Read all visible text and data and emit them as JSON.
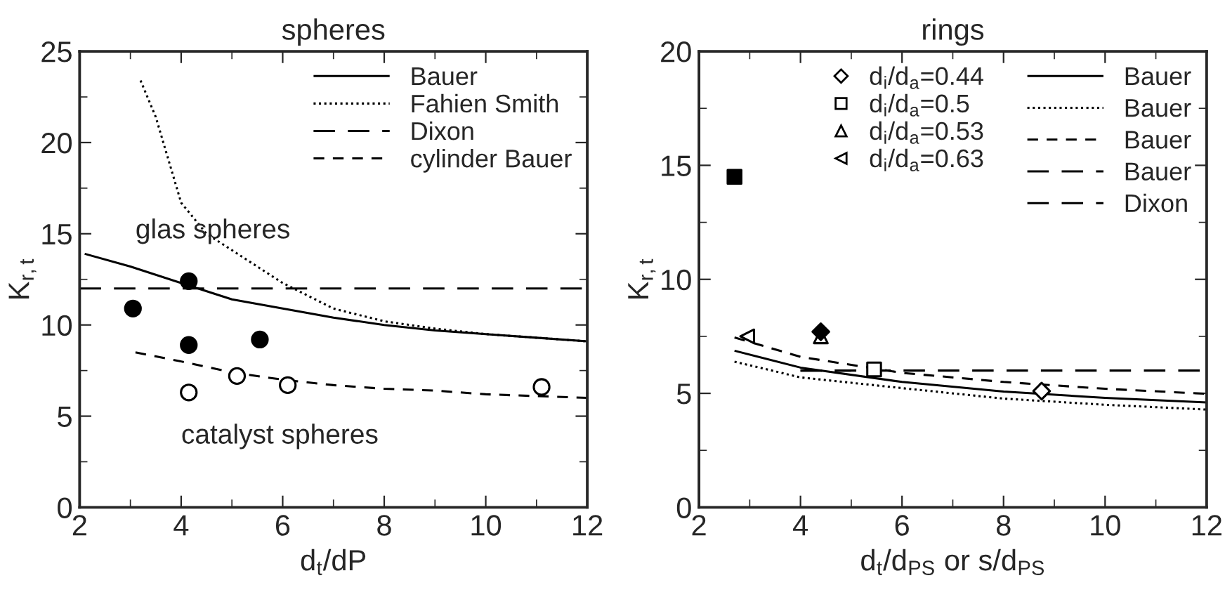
{
  "chart_data": [
    {
      "type": "line",
      "title": "spheres",
      "xlabel": "d$_{t}$/dP",
      "ylabel": "K$_{r,t}$",
      "xlim": [
        2,
        12
      ],
      "ylim": [
        0,
        25
      ],
      "xticks": [
        2,
        {
          "value": 3,
          "label": null
        },
        4,
        {
          "value": 5,
          "label": null
        },
        6,
        {
          "value": 7,
          "label": null
        },
        8,
        {
          "value": 9,
          "label": null
        },
        10,
        {
          "value": 11,
          "label": null
        },
        12
      ],
      "yticks": [
        0,
        {
          "value": 2.5,
          "label": null
        },
        5,
        {
          "value": 7.5,
          "label": null
        },
        10,
        {
          "value": 12.5,
          "label": null
        },
        15,
        {
          "value": 17.5,
          "label": null
        },
        20,
        {
          "value": 22.5,
          "label": null
        },
        25
      ],
      "legend": "top right",
      "series": [
        {
          "type": "line",
          "name": "Bauer",
          "color": "#000000",
          "line_style": "solid",
          "x": [
            2.1,
            3,
            4,
            5,
            6,
            7,
            8,
            9,
            10,
            11,
            12
          ],
          "values": [
            13.9,
            13.2,
            12.3,
            11.4,
            10.9,
            10.4,
            10.0,
            9.7,
            9.5,
            9.3,
            9.1
          ]
        },
        {
          "type": "line",
          "name": "Fahien Smith",
          "color": "#000000",
          "line_style": "dotted",
          "x": [
            3.2,
            3.5,
            4,
            4.5,
            5,
            6,
            7,
            8,
            9,
            10,
            11,
            12
          ],
          "values": [
            23.4,
            21.4,
            16.7,
            15.0,
            14.1,
            12.3,
            10.9,
            10.2,
            9.8,
            9.5,
            9.3,
            9.1
          ]
        },
        {
          "type": "line",
          "name": "Dixon",
          "color": "#000000",
          "line_style": "long dashed",
          "x": [
            2,
            12
          ],
          "values": [
            12,
            12
          ]
        },
        {
          "type": "line",
          "name": "cylinder Bauer",
          "color": "#000000",
          "line_style": "dashed",
          "x": [
            3.1,
            4,
            5,
            6,
            7,
            8,
            9,
            10,
            11,
            12
          ],
          "values": [
            8.5,
            8.0,
            7.4,
            7.0,
            6.7,
            6.5,
            6.4,
            6.2,
            6.1,
            6.0
          ]
        },
        {
          "type": "scatter",
          "color": "#000000",
          "marker": "circle",
          "x": [
            3.05,
            4.15,
            4.15,
            5.55
          ],
          "values": [
            10.9,
            12.4,
            8.9,
            9.2
          ]
        },
        {
          "type": "scatter",
          "color": "#ffffff",
          "marker": "circle",
          "x": [
            4.15,
            5.1,
            6.1,
            11.1
          ],
          "values": [
            6.3,
            7.2,
            6.7,
            6.6
          ]
        }
      ],
      "annotations": [
        "glas spheres",
        "catalyst spheres"
      ]
    },
    {
      "type": "line",
      "title": "rings",
      "xlabel": "d$_{t}$/d$_{PS}$ or s/d$_{PS}$",
      "ylabel": "K$_{r,t}$",
      "xlim": [
        2,
        12
      ],
      "ylim": [
        0,
        20
      ],
      "xticks": [
        2,
        {
          "value": 3,
          "label": null
        },
        4,
        {
          "value": 5,
          "label": null
        },
        6,
        {
          "value": 7,
          "label": null
        },
        8,
        {
          "value": 9,
          "label": null
        },
        10,
        {
          "value": 11,
          "label": null
        },
        12
      ],
      "yticks": [
        0,
        {
          "value": 2.5,
          "label": null
        },
        5,
        {
          "value": 7.5,
          "label": null
        },
        10,
        {
          "value": 12.5,
          "label": null
        },
        15,
        {
          "value": 17.5,
          "label": null
        },
        20
      ],
      "legend": "top right",
      "series": [
        {
          "type": "scatter",
          "name": "d$_{i}$/d$_{a}$=0.44",
          "color": "#ffffff",
          "marker": "diamond",
          "x": [
            8.75
          ],
          "values": [
            5.1
          ]
        },
        {
          "type": "scatter",
          "name": "d$_{i}$/d$_{a}$=0.5",
          "color": "#ffffff",
          "marker": "square",
          "x": [
            5.45
          ],
          "values": [
            6.05
          ]
        },
        {
          "type": "scatter",
          "name": "d$_{i}$/d$_{a}$=0.53",
          "color": "#ffffff",
          "marker": "triangle",
          "x": [
            4.4
          ],
          "values": [
            7.5
          ]
        },
        {
          "type": "scatter",
          "name": "d$_{i}$/d$_{a}$=0.63",
          "color": "#ffffff",
          "marker": "triangle left",
          "x": [
            2.95
          ],
          "values": [
            7.5
          ]
        },
        {
          "type": "scatter",
          "color": "#000000",
          "marker": "square",
          "x": [
            2.7
          ],
          "values": [
            14.5
          ]
        },
        {
          "type": "scatter",
          "color": "#000000",
          "marker": "diamond",
          "x": [
            4.4
          ],
          "values": [
            7.7
          ]
        },
        {
          "type": "line",
          "name": "Bauer",
          "color": "#000000",
          "line_style": "solid",
          "x": [
            2.7,
            4,
            6,
            8,
            10,
            12
          ],
          "values": [
            6.87,
            6.13,
            5.5,
            5.08,
            4.8,
            4.6
          ]
        },
        {
          "type": "line",
          "name": "Bauer",
          "color": "#000000",
          "line_style": "dotted",
          "x": [
            2.7,
            4,
            6,
            8,
            10,
            12
          ],
          "values": [
            6.39,
            5.7,
            5.23,
            4.77,
            4.5,
            4.29
          ]
        },
        {
          "type": "line",
          "name": "Bauer",
          "color": "#000000",
          "line_style": "dashed",
          "x": [
            2.7,
            4,
            6,
            8,
            10,
            12
          ],
          "values": [
            7.45,
            6.6,
            5.9,
            5.5,
            5.2,
            4.98
          ]
        },
        {
          "type": "line",
          "name": "Bauer",
          "color": "#000000",
          "line_style": "long dashed",
          "x": [
            4.0,
            5.0
          ],
          "values": [
            6.0,
            6.0
          ]
        },
        {
          "type": "line",
          "name": "Dixon",
          "color": "#000000",
          "line_style": "long dashed",
          "x": [
            4.0,
            12
          ],
          "values": [
            6.0,
            6.0
          ]
        }
      ]
    }
  ]
}
